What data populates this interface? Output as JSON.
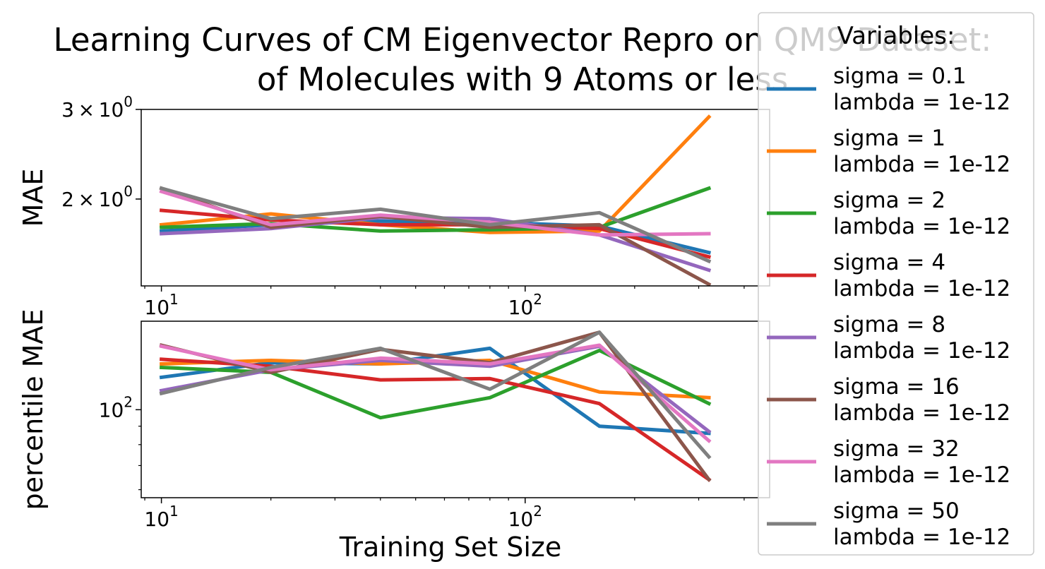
{
  "chart_data": {
    "type": "line",
    "title_lines": [
      "Learning Curves of CM Eigenvector Repro on QM9 Dataset:",
      "of Molecules with 9 Atoms or less"
    ],
    "x": [
      10,
      20,
      40,
      80,
      160,
      320
    ],
    "xlabel": "Training Set Size",
    "x_scale": "log",
    "grid": false,
    "legend": {
      "title": "Variables:",
      "placement": "right, outside axes",
      "line2": "lambda = 1e-12"
    },
    "series": [
      {
        "name": "sigma = 0.1",
        "color": "#1f77b4"
      },
      {
        "name": "sigma = 1",
        "color": "#ff7f0e"
      },
      {
        "name": "sigma = 2",
        "color": "#2ca02c"
      },
      {
        "name": "sigma = 4",
        "color": "#d62728"
      },
      {
        "name": "sigma = 8",
        "color": "#9467bd"
      },
      {
        "name": "sigma = 16",
        "color": "#8c564b"
      },
      {
        "name": "sigma = 32",
        "color": "#e377c2"
      },
      {
        "name": "sigma = 50",
        "color": "#7f7f7f"
      }
    ],
    "panels": [
      {
        "ylabel": "MAE",
        "y_scale": "log",
        "ylim": [
          1.35,
          3.0
        ],
        "xlim": [
          8.8,
          470
        ],
        "xticks": [
          {
            "value": 10,
            "base": "10",
            "exp": "1"
          },
          {
            "value": 100,
            "base": "10",
            "exp": "2"
          }
        ],
        "yticks": [
          {
            "value": 2,
            "mant": "2",
            "base": "10",
            "exp": "0"
          },
          {
            "value": 3,
            "mant": "3",
            "base": "10",
            "exp": "0"
          }
        ],
        "values": [
          [
            1.73,
            1.78,
            1.81,
            1.8,
            1.77,
            1.57
          ],
          [
            1.78,
            1.87,
            1.78,
            1.72,
            1.73,
            2.9
          ],
          [
            1.76,
            1.79,
            1.73,
            1.74,
            1.76,
            2.1
          ],
          [
            1.9,
            1.82,
            1.78,
            1.78,
            1.75,
            1.54
          ],
          [
            1.71,
            1.75,
            1.84,
            1.83,
            1.7,
            1.45
          ],
          [
            2.1,
            1.76,
            1.85,
            1.76,
            1.78,
            1.36
          ],
          [
            2.07,
            1.78,
            1.86,
            1.8,
            1.7,
            1.71
          ],
          [
            2.1,
            1.83,
            1.91,
            1.78,
            1.88,
            1.51
          ]
        ]
      },
      {
        "ylabel": "percentile MAE",
        "y_scale": "log",
        "ylim": [
          57,
          176
        ],
        "xlim": [
          8.8,
          470
        ],
        "xticks": [
          {
            "value": 10,
            "base": "10",
            "exp": "1"
          },
          {
            "value": 100,
            "base": "10",
            "exp": "2"
          }
        ],
        "yticks": [
          {
            "value": 100,
            "base": "10",
            "exp": "2"
          }
        ],
        "values": [
          [
            123,
            135,
            134,
            148,
            90,
            86
          ],
          [
            134,
            137,
            134,
            137,
            112,
            108
          ],
          [
            131,
            127,
            95,
            108,
            146,
            104
          ],
          [
            138,
            132,
            121,
            122,
            104,
            64
          ],
          [
            113,
            129,
            137,
            132,
            150,
            87
          ],
          [
            151,
            127,
            147,
            135,
            164,
            64
          ],
          [
            150,
            129,
            139,
            134,
            151,
            82
          ],
          [
            111,
            131,
            148,
            114,
            164,
            74
          ]
        ]
      }
    ]
  }
}
